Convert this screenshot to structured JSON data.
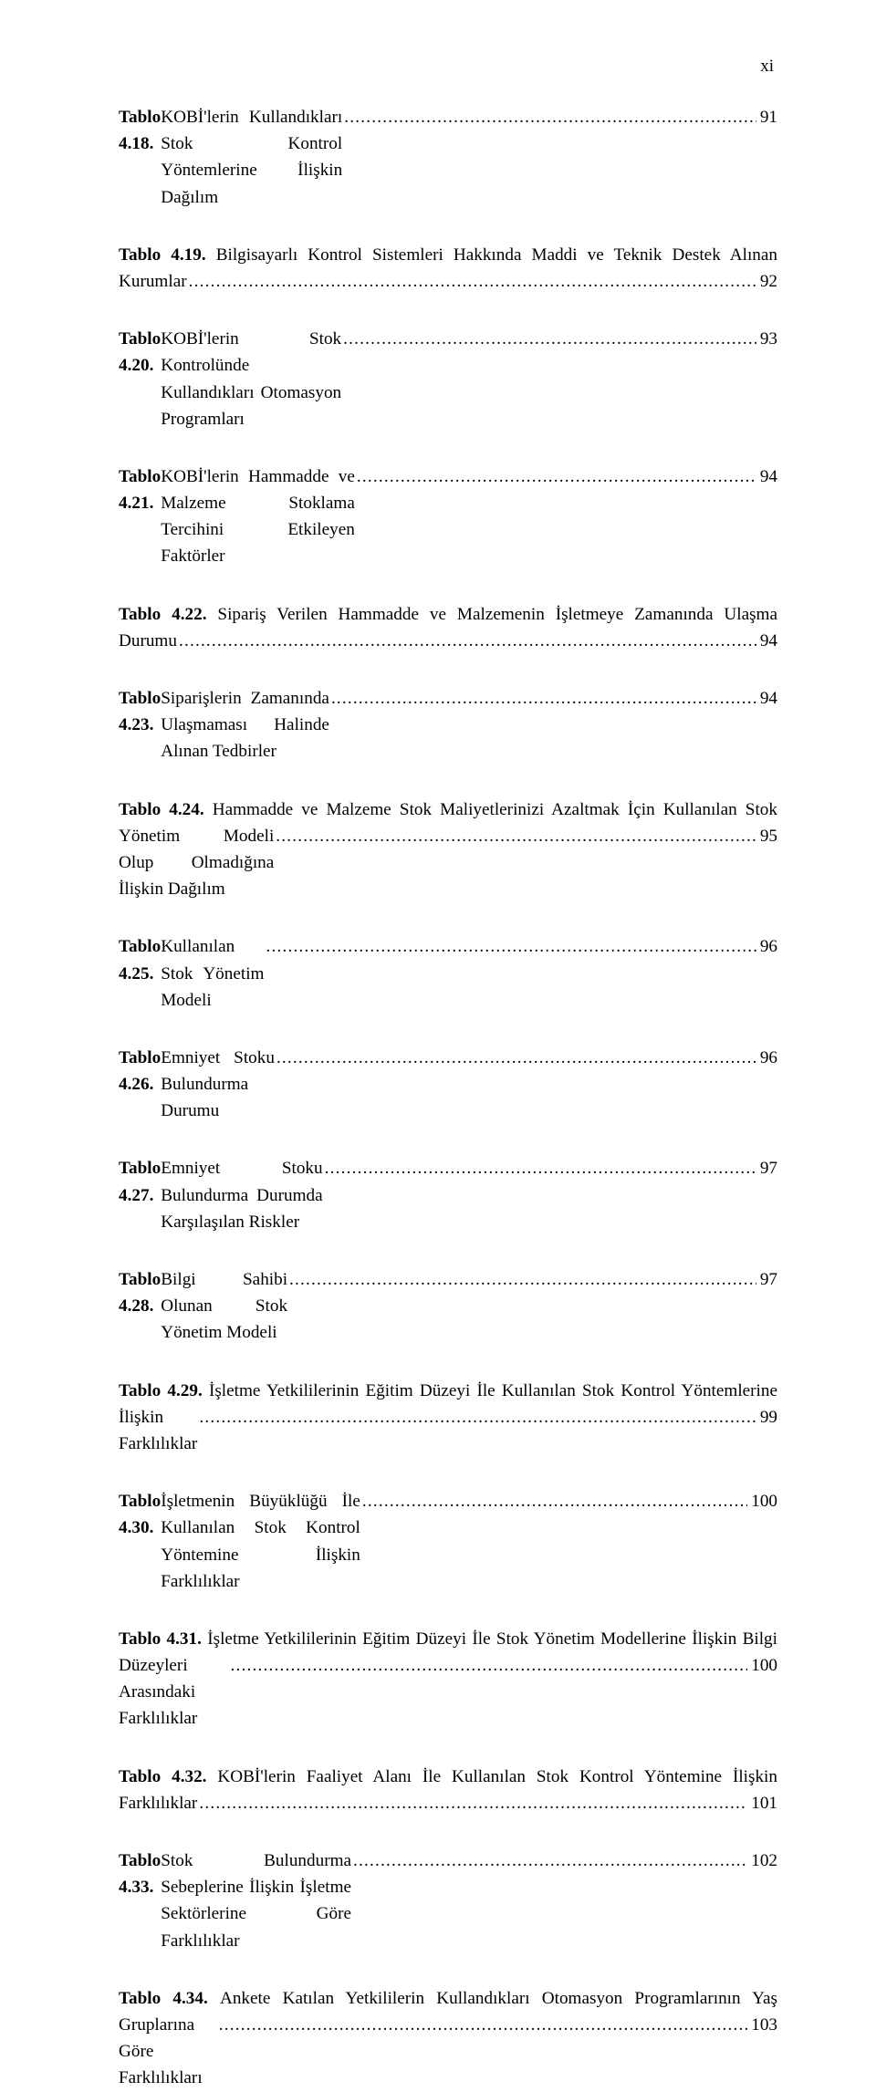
{
  "pageHeader": {
    "romanNumeral": "xi"
  },
  "style": {
    "background": "#ffffff",
    "textColor": "#000000",
    "fontFamily": "Times New Roman",
    "fontSizePt": 12,
    "fontSizePx": 19.2,
    "lineHeight": 1.52,
    "entrySpacingPx": 34,
    "pageWidthPx": 960,
    "pageHeightPx": 1648,
    "leaderChar": "."
  },
  "entries": [
    {
      "label": "Tablo 4.18.",
      "title": "KOBİ'lerin Kullandıkları Stok Kontrol Yöntemlerine İlişkin Dağılım",
      "page": "91",
      "justified": false
    },
    {
      "label": "Tablo 4.19.",
      "title": "Bilgisayarlı Kontrol Sistemleri Hakkında Maddi ve Teknik Destek Alınan Kurumlar",
      "page": "92",
      "justified": true
    },
    {
      "label": "Tablo 4.20.",
      "title": "KOBİ'lerin Stok Kontrolünde Kullandıkları Otomasyon Programları",
      "page": "93",
      "justified": false
    },
    {
      "label": "Tablo 4.21.",
      "title": "KOBİ'lerin Hammadde ve Malzeme Stoklama Tercihini Etkileyen Faktörler",
      "page": "94",
      "justified": true
    },
    {
      "label": "Tablo 4.22.",
      "title": "Sipariş Verilen Hammadde ve Malzemenin İşletmeye Zamanında Ulaşma Durumu",
      "page": "94",
      "justified": true
    },
    {
      "label": "Tablo 4.23.",
      "title": "Siparişlerin Zamanında Ulaşmaması Halinde Alınan Tedbirler",
      "page": "94",
      "justified": false
    },
    {
      "label": "Tablo 4.24.",
      "title": "Hammadde ve Malzeme Stok Maliyetlerinizi Azaltmak İçin Kullanılan Stok Yönetim Modeli Olup Olmadığına İlişkin Dağılım",
      "page": "95",
      "justified": true
    },
    {
      "label": "Tablo 4.25.",
      "title": "Kullanılan Stok Yönetim Modeli",
      "page": "96",
      "justified": false
    },
    {
      "label": "Tablo 4.26.",
      "title": "Emniyet Stoku Bulundurma Durumu",
      "page": "96",
      "justified": false
    },
    {
      "label": "Tablo 4.27.",
      "title": "Emniyet Stoku Bulundurma Durumda Karşılaşılan Riskler",
      "page": "97",
      "justified": false
    },
    {
      "label": "Tablo 4.28.",
      "title": "Bilgi Sahibi Olunan Stok Yönetim Modeli",
      "page": "97",
      "justified": false
    },
    {
      "label": "Tablo 4.29.",
      "title": "İşletme Yetkililerinin Eğitim Düzeyi İle Kullanılan Stok Kontrol Yöntemlerine İlişkin Farklılıklar",
      "page": "99",
      "justified": true
    },
    {
      "label": "Tablo 4.30.",
      "title": "İşletmenin Büyüklüğü İle Kullanılan Stok Kontrol Yöntemine İlişkin Farklılıklar",
      "page": "100",
      "justified": true
    },
    {
      "label": "Tablo 4.31.",
      "title": "İşletme Yetkililerinin Eğitim Düzeyi İle Stok Yönetim Modellerine İlişkin Bilgi Düzeyleri Arasındaki Farklılıklar",
      "page": "100",
      "justified": true
    },
    {
      "label": "Tablo 4.32.",
      "title": "KOBİ'lerin Faaliyet Alanı İle Kullanılan Stok Kontrol Yöntemine İlişkin Farklılıklar",
      "page": "101",
      "justified": true
    },
    {
      "label": "Tablo 4.33.",
      "title": "Stok Bulundurma Sebeplerine İlişkin İşletme Sektörlerine Göre Farklılıklar",
      "page": "102",
      "justified": true
    },
    {
      "label": "Tablo 4.34.",
      "title": "Ankete Katılan Yetkililerin Kullandıkları Otomasyon Programlarının Yaş Gruplarına Göre Farklılıkları",
      "page": "103",
      "justified": true
    }
  ]
}
